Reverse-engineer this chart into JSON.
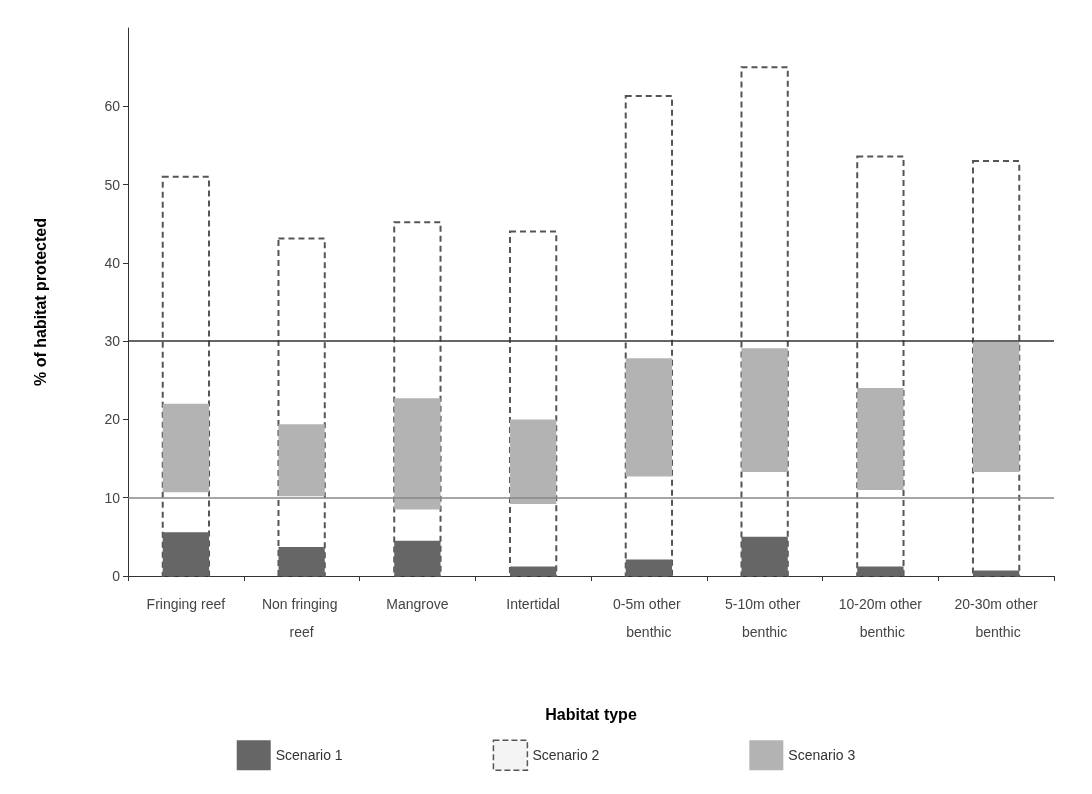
{
  "chart_data": {
    "type": "bar",
    "xlabel": "Habitat type",
    "ylabel": "% of habitat protected",
    "categories": [
      "Fringing reef",
      "Non fringing reef",
      "Mangrove",
      "Intertidal",
      "0-5m other benthic",
      "5-10m other benthic",
      "10-20m other benthic",
      "20-30m other benthic"
    ],
    "series": [
      {
        "name": "Scenario 2",
        "color": "#555555",
        "line_style": "dashed",
        "values": [
          51,
          43.1,
          45.2,
          44,
          61.3,
          65,
          53.6,
          53
        ]
      },
      {
        "name": "Scenario 3",
        "color": "#b3b3b3",
        "base": [
          10.7,
          10.2,
          8.5,
          9.2,
          12.7,
          13.3,
          11,
          13.3
        ],
        "values": [
          11.3,
          9.2,
          14.2,
          10.8,
          15.1,
          15.8,
          13,
          16.6
        ]
      },
      {
        "name": "Scenario 1",
        "color": "#666666",
        "values": [
          5.6,
          3.7,
          4.5,
          1.2,
          2.1,
          5,
          1.2,
          0.7
        ]
      }
    ],
    "ylim": [
      0,
      70
    ],
    "yticks": [
      0,
      10,
      20,
      30,
      40,
      50,
      60
    ],
    "ref_lines": [
      {
        "axis": "y",
        "value": 30,
        "color": "#333333"
      },
      {
        "axis": "y",
        "value": 10,
        "color": "#888888"
      }
    ],
    "grid": false,
    "legend": "bottom"
  }
}
